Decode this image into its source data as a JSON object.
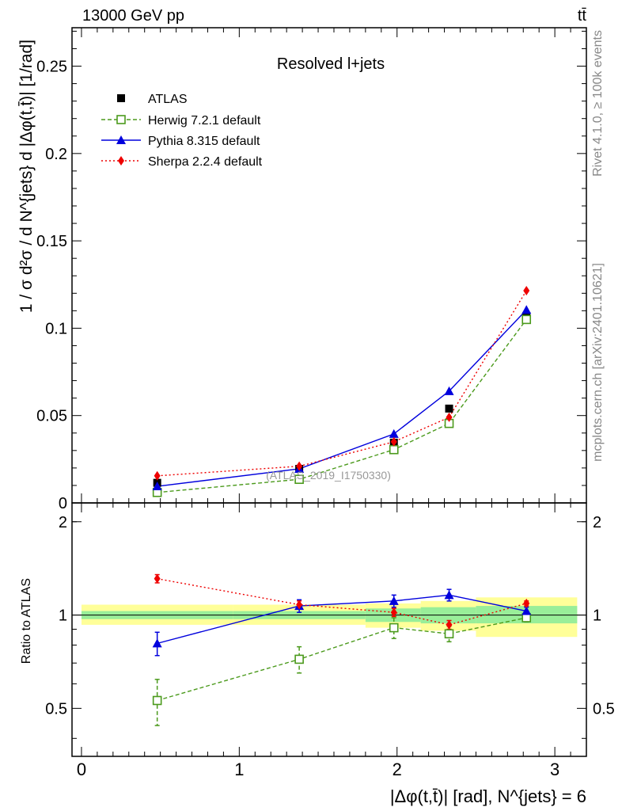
{
  "header": {
    "energy_label": "13000 GeV pp",
    "process_label": "tt̄"
  },
  "side_labels": {
    "rivet": "Rivet 4.1.0, ≥ 100k events",
    "mcplots": "mcplots.cern.ch [arXiv:2401.10621]"
  },
  "chart_data": {
    "type": "line",
    "title": "Resolved l+jets",
    "watermark": "(ATLAS_2019_I1750330)",
    "xlabel": "|Δφ(t,t̄)| [rad], N^{jets} = 6",
    "ylabel": "1 / σ d²σ / d N^{jets} d |Δφ(t,t̄)| [1/rad]",
    "ratio_ylabel": "Ratio to ATLAS",
    "xlim": [
      -0.06,
      3.2
    ],
    "ylim": [
      0,
      0.272
    ],
    "ratio_ylim": [
      0.35,
      2.3
    ],
    "ratio_scale": "log",
    "xticks": [
      0,
      1,
      2,
      3
    ],
    "yticks": [
      0,
      0.05,
      0.1,
      0.15,
      0.2,
      0.25
    ],
    "ytick_labels": [
      "0",
      "0.05",
      "0.1",
      "0.15",
      "0.2",
      "0.25"
    ],
    "ratio_yticks": [
      0.5,
      1,
      2
    ],
    "ratio_ytick_labels": [
      "0.5",
      "1",
      "2"
    ],
    "legend_position": "top-left",
    "bins": [
      [
        0,
        0.96
      ],
      [
        0.96,
        1.8
      ],
      [
        1.8,
        2.15
      ],
      [
        2.15,
        2.5
      ],
      [
        2.5,
        3.1416
      ]
    ],
    "x": [
      0.48,
      1.38,
      1.98,
      2.33,
      2.82
    ],
    "series": [
      {
        "name": "ATLAS",
        "color": "#000000",
        "marker": "square-filled",
        "line": "none",
        "values": [
          0.0115,
          0.0195,
          0.0345,
          0.054,
          0.107
        ],
        "ratio": [
          1,
          1,
          1,
          1,
          1
        ]
      },
      {
        "name": "Herwig 7.2.1 default",
        "color": "#4b9a1c",
        "marker": "square-open",
        "line": "dashed",
        "values": [
          0.006,
          0.0135,
          0.0305,
          0.0455,
          0.105
        ],
        "ratio": [
          0.53,
          0.72,
          0.91,
          0.87,
          0.98
        ],
        "ratio_err": [
          0.09,
          0.07,
          0.07,
          0.05,
          0.03
        ]
      },
      {
        "name": "Pythia 8.315 default",
        "color": "#0000dd",
        "marker": "triangle",
        "line": "solid",
        "values": [
          0.0095,
          0.0195,
          0.0395,
          0.064,
          0.1105
        ],
        "ratio": [
          0.81,
          1.07,
          1.11,
          1.16,
          1.03
        ],
        "ratio_err": [
          0.07,
          0.05,
          0.05,
          0.05,
          0.03
        ]
      },
      {
        "name": "Sherpa 2.2.4 default",
        "color": "#ee0000",
        "marker": "diamond",
        "line": "dotted",
        "values": [
          0.0155,
          0.021,
          0.035,
          0.049,
          0.1215
        ],
        "ratio": [
          1.31,
          1.08,
          1.02,
          0.93,
          1.09
        ],
        "ratio_err": [
          0.04,
          0.03,
          0.03,
          0.03,
          0.02
        ]
      }
    ],
    "ratio_bands": {
      "inner": [
        [
          0.97,
          1.03
        ],
        [
          0.97,
          1.03
        ],
        [
          0.95,
          1.05
        ],
        [
          0.94,
          1.06
        ],
        [
          0.94,
          1.07
        ]
      ],
      "outer": [
        [
          0.93,
          1.08
        ],
        [
          0.93,
          1.08
        ],
        [
          0.91,
          1.09
        ],
        [
          0.89,
          1.11
        ],
        [
          0.85,
          1.14
        ]
      ]
    }
  }
}
